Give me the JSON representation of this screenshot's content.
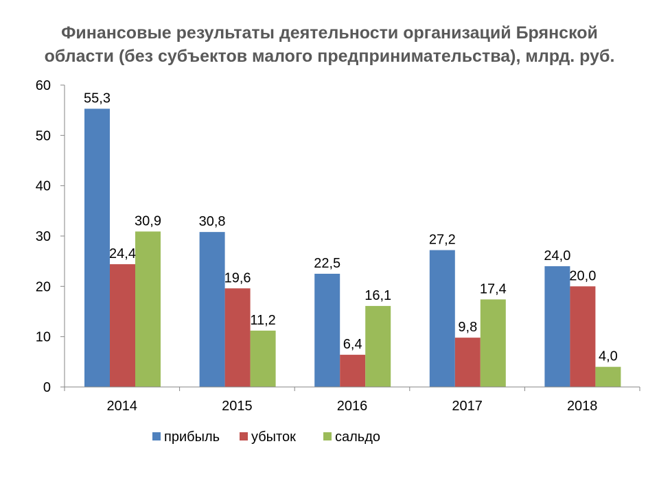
{
  "title_line1": "Финансовые результаты деятельности организаций Брянской",
  "title_line2": "области  (без субъектов малого предпринимательства), млрд. руб.",
  "colors": {
    "прибыль": "#4F81BD",
    "убыток": "#C0504D",
    "сальдо": "#9BBB59",
    "axis": "#868686",
    "text": "#000000",
    "title": "#595959"
  },
  "chart_data": {
    "type": "bar",
    "title": "Финансовые результаты деятельности организаций Брянской области  (без субъектов малого предпринимательства), млрд. руб.",
    "xlabel": "",
    "ylabel": "",
    "categories": [
      "2014",
      "2015",
      "2016",
      "2017",
      "2018"
    ],
    "series": [
      {
        "name": "прибыль",
        "values": [
          55.3,
          30.8,
          22.5,
          27.2,
          24.0
        ],
        "labels": [
          "55,3",
          "30,8",
          "22,5",
          "27,2",
          "24,0"
        ]
      },
      {
        "name": "убыток",
        "values": [
          24.4,
          19.6,
          6.4,
          9.8,
          20.0
        ],
        "labels": [
          "24,4",
          "19,6",
          "6,4",
          "9,8",
          "20,0"
        ]
      },
      {
        "name": "сальдо",
        "values": [
          30.9,
          11.2,
          16.1,
          17.4,
          4.0
        ],
        "labels": [
          "30,9",
          "11,2",
          "16,1",
          "17,4",
          "4,0"
        ]
      }
    ],
    "ylim": [
      0,
      60
    ],
    "yticks": [
      "0",
      "10",
      "20",
      "30",
      "40",
      "50",
      "60"
    ],
    "grid": false,
    "legend_position": "bottom"
  }
}
